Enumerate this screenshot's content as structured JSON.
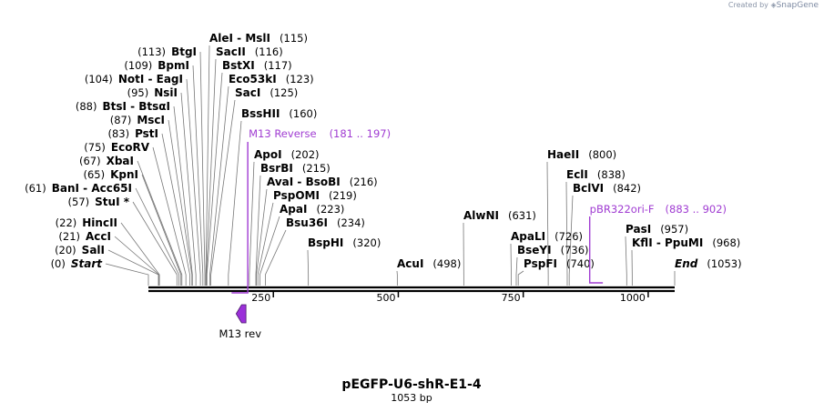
{
  "credit": {
    "text": "Created by",
    "brand": "SnapGene"
  },
  "map": {
    "name": "pEGFP-U6-shR-E1-4",
    "length_label": "1053 bp",
    "length": 1053
  },
  "ticks": [
    {
      "pos": 250,
      "label": "250"
    },
    {
      "pos": 500,
      "label": "500"
    },
    {
      "pos": 750,
      "label": "750"
    },
    {
      "pos": 1000,
      "label": "1000"
    }
  ],
  "sites": [
    {
      "id": "start",
      "name": "Start",
      "italic": true,
      "pos": 0,
      "pos_label": "(0)",
      "side": "left"
    },
    {
      "id": "sali",
      "name": "SalI",
      "pos": 20,
      "pos_label": "(20)",
      "side": "left"
    },
    {
      "id": "acci",
      "name": "AccI",
      "pos": 21,
      "pos_label": "(21)",
      "side": "left"
    },
    {
      "id": "hincii",
      "name": "HincII",
      "pos": 22,
      "pos_label": "(22)",
      "side": "left"
    },
    {
      "id": "stui",
      "name": "StuI *",
      "pos": 57,
      "pos_label": "(57)",
      "side": "left"
    },
    {
      "id": "bani",
      "name": "BanI  - Acc65I",
      "pos": 61,
      "pos_label": "(61)",
      "side": "left"
    },
    {
      "id": "kpni",
      "name": "KpnI",
      "pos": 65,
      "pos_label": "(65)",
      "side": "left"
    },
    {
      "id": "xbai",
      "name": "XbaI",
      "pos": 67,
      "pos_label": "(67)",
      "side": "left"
    },
    {
      "id": "ecorv",
      "name": "EcoRV",
      "pos": 75,
      "pos_label": "(75)",
      "side": "left"
    },
    {
      "id": "psti",
      "name": "PstI",
      "pos": 83,
      "pos_label": "(83)",
      "side": "left"
    },
    {
      "id": "msci",
      "name": "MscI",
      "pos": 87,
      "pos_label": "(87)",
      "side": "left"
    },
    {
      "id": "btsi",
      "name": "BtsI  - BtsαI",
      "pos": 88,
      "pos_label": "(88)",
      "side": "left"
    },
    {
      "id": "nsii",
      "name": "NsiI",
      "pos": 95,
      "pos_label": "(95)",
      "side": "left"
    },
    {
      "id": "noti",
      "name": "NotI  - EagI",
      "pos": 104,
      "pos_label": "(104)",
      "side": "left"
    },
    {
      "id": "bpmi",
      "name": "BpmI",
      "pos": 109,
      "pos_label": "(109)",
      "side": "left"
    },
    {
      "id": "btgi",
      "name": "BtgI",
      "pos": 113,
      "pos_label": "(113)",
      "side": "left"
    },
    {
      "id": "alei",
      "name": "AleI  - MslI",
      "pos": 115,
      "pos_label": "(115)",
      "side": "right"
    },
    {
      "id": "sacii",
      "name": "SacII",
      "pos": 116,
      "pos_label": "(116)",
      "side": "right"
    },
    {
      "id": "bstxi",
      "name": "BstXI",
      "pos": 117,
      "pos_label": "(117)",
      "side": "right"
    },
    {
      "id": "eco53ki",
      "name": "Eco53kI",
      "pos": 123,
      "pos_label": "(123)",
      "side": "right"
    },
    {
      "id": "saci",
      "name": "SacI",
      "pos": 125,
      "pos_label": "(125)",
      "side": "right"
    },
    {
      "id": "bsshii",
      "name": "BssHII",
      "pos": 160,
      "pos_label": "(160)",
      "side": "right"
    },
    {
      "id": "apoi",
      "name": "ApoI",
      "pos": 202,
      "pos_label": "(202)",
      "side": "right"
    },
    {
      "id": "bsrbi",
      "name": "BsrBI",
      "pos": 215,
      "pos_label": "(215)",
      "side": "right"
    },
    {
      "id": "avai",
      "name": "AvaI  - BsoBI",
      "pos": 216,
      "pos_label": "(216)",
      "side": "right"
    },
    {
      "id": "pspomi",
      "name": "PspOMI",
      "pos": 219,
      "pos_label": "(219)",
      "side": "right"
    },
    {
      "id": "apai",
      "name": "ApaI",
      "pos": 223,
      "pos_label": "(223)",
      "side": "right"
    },
    {
      "id": "bsu36i",
      "name": "Bsu36I",
      "pos": 234,
      "pos_label": "(234)",
      "side": "right"
    },
    {
      "id": "bsphi",
      "name": "BspHI",
      "pos": 320,
      "pos_label": "(320)",
      "side": "right"
    },
    {
      "id": "acui",
      "name": "AcuI",
      "pos": 498,
      "pos_label": "(498)",
      "side": "right"
    },
    {
      "id": "alwni",
      "name": "AlwNI",
      "pos": 631,
      "pos_label": "(631)",
      "side": "right"
    },
    {
      "id": "apali",
      "name": "ApaLI",
      "pos": 726,
      "pos_label": "(726)",
      "side": "right"
    },
    {
      "id": "bseyi",
      "name": "BseYI",
      "pos": 736,
      "pos_label": "(736)",
      "side": "right"
    },
    {
      "id": "pspfi",
      "name": "PspFI",
      "pos": 740,
      "pos_label": "(740)",
      "side": "right"
    },
    {
      "id": "haeii",
      "name": "HaeII",
      "pos": 800,
      "pos_label": "(800)",
      "side": "right"
    },
    {
      "id": "ecli",
      "name": "EclI",
      "pos": 838,
      "pos_label": "(838)",
      "side": "right"
    },
    {
      "id": "bclvi",
      "name": "BclVI",
      "pos": 842,
      "pos_label": "(842)",
      "side": "right"
    },
    {
      "id": "pasi",
      "name": "PasI",
      "pos": 957,
      "pos_label": "(957)",
      "side": "right"
    },
    {
      "id": "kfli",
      "name": "KflI  - PpuMI",
      "pos": 968,
      "pos_label": "(968)",
      "side": "right"
    },
    {
      "id": "end",
      "name": "End",
      "italic": true,
      "pos": 1053,
      "pos_label": "(1053)",
      "side": "right"
    }
  ],
  "primers": [
    {
      "id": "m13-reverse",
      "name": "M13 Reverse",
      "range_label": "(181 .. 197)",
      "start": 181,
      "end": 197,
      "direction": "reverse"
    },
    {
      "id": "pbr322ori-f",
      "name": "pBR322ori-F",
      "range_label": "(883 .. 902)",
      "start": 883,
      "end": 902,
      "direction": "forward"
    }
  ],
  "features": [
    {
      "id": "m13-rev",
      "name": "M13 rev",
      "start": 181,
      "end": 197,
      "direction": "reverse",
      "color": "#9b30d9"
    }
  ],
  "colors": {
    "primer": "#a03cd2",
    "feature": "#9b30d9",
    "backbone": "#000000",
    "leader": "#777777"
  }
}
